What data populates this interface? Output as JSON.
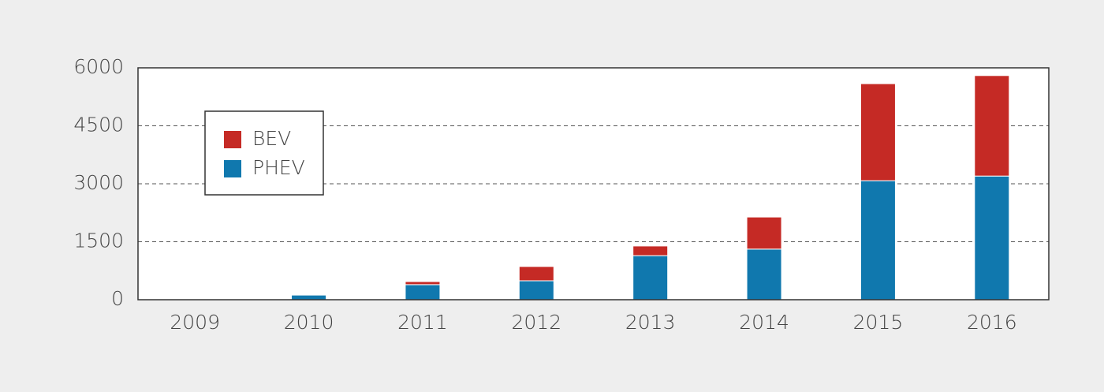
{
  "chart_data": {
    "type": "stacked-bar",
    "categories": [
      "2009",
      "2010",
      "2011",
      "2012",
      "2013",
      "2014",
      "2015",
      "2016"
    ],
    "series": [
      {
        "name": "BEV",
        "color": "#c52a25",
        "values": [
          0,
          0,
          80,
          370,
          250,
          830,
          2510,
          2600
        ]
      },
      {
        "name": "PHEV",
        "color": "#1078ae",
        "values": [
          0,
          120,
          390,
          490,
          1140,
          1310,
          3080,
          3200
        ]
      }
    ],
    "ylim": [
      0,
      6000
    ],
    "yticks": [
      0,
      1500,
      3000,
      4500,
      6000
    ],
    "grid": true,
    "legend": "upper-left"
  }
}
